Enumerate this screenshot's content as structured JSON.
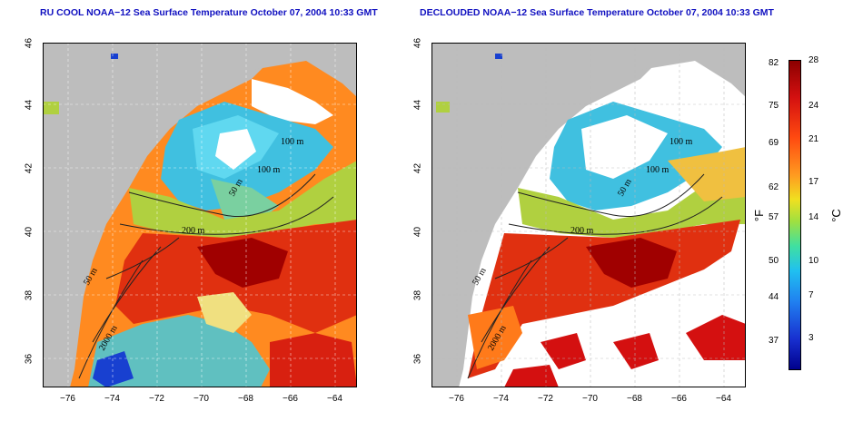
{
  "panels": [
    {
      "title": "RU COOL NOAA−12 Sea Surface Temperature October 07, 2004 10:33 GMT"
    },
    {
      "title": "DECLOUDED NOAA−12 Sea Surface Temperature October 07, 2004 10:33 GMT"
    }
  ],
  "axes": {
    "lat_ticks": [
      "46",
      "44",
      "42",
      "40",
      "38",
      "36"
    ],
    "lon_ticks": [
      "−76",
      "−74",
      "−72",
      "−70",
      "−68",
      "−66",
      "−64"
    ]
  },
  "contours": {
    "c1": "100 m",
    "c2": "100 m",
    "c3": "50 m",
    "c4": "200 m",
    "c5": "50 m",
    "c6": "2000 m"
  },
  "colorbar": {
    "fahrenheit": [
      "82",
      "75",
      "69",
      "62",
      "57",
      "50",
      "44",
      "37"
    ],
    "celsius": [
      "28",
      "24",
      "21",
      "17",
      "14",
      "10",
      "7",
      "3"
    ],
    "unit_f": "°F",
    "unit_c": "°C"
  },
  "colors": {
    "land": "#bdbdbd",
    "warm": "#d41010",
    "hot": "#8b0000",
    "mid": "#ff7a1a",
    "cool": "#40c0e0",
    "cold": "#1840d0"
  }
}
